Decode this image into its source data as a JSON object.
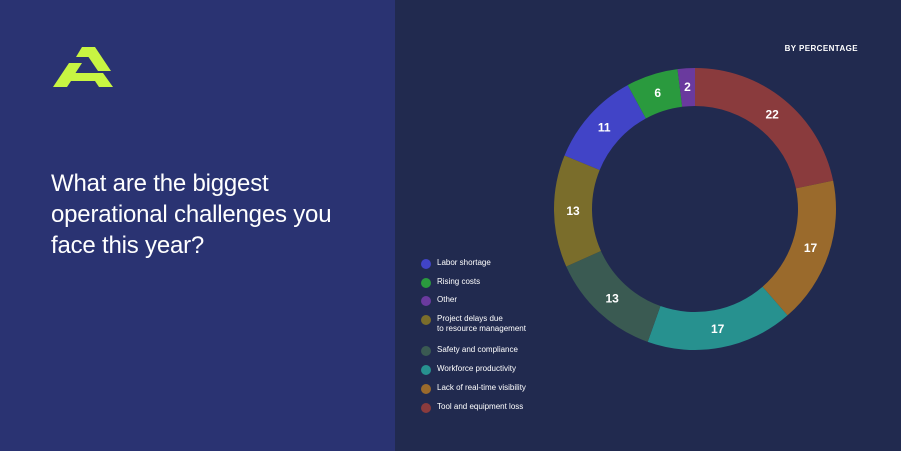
{
  "brand": {
    "logo_icon": "company-logo-icon",
    "accent": "#c8f542"
  },
  "heading": {
    "question": "What are the biggest operational challenges you face this year?"
  },
  "chart_data": {
    "type": "pie",
    "subtitle": "BY PERCENTAGE",
    "donut": true,
    "legend_position": "bottom-left",
    "series": [
      {
        "name": "Tool and equipment loss",
        "value": 22,
        "color": "#8a3b3d"
      },
      {
        "name": "Lack of real-time visibility",
        "value": 17,
        "color": "#9a6a2c"
      },
      {
        "name": "Workforce productivity",
        "value": 17,
        "color": "#27918f"
      },
      {
        "name": "Safety and compliance",
        "value": 13,
        "color": "#3a5a52"
      },
      {
        "name": "Project delays due\nto resource management",
        "value": 13,
        "color": "#7a6d2b"
      },
      {
        "name": "Labor shortage",
        "value": 11,
        "color": "#4144c7"
      },
      {
        "name": "Rising costs",
        "value": 6,
        "color": "#2a9a3e"
      },
      {
        "name": "Other",
        "value": 2,
        "color": "#6a3a9e"
      }
    ],
    "legend_order": [
      "Labor shortage",
      "Rising costs",
      "Other",
      "Project delays due\nto resource management",
      "Safety and compliance",
      "Workforce productivity",
      "Lack of real-time visibility",
      "Tool and equipment loss"
    ]
  }
}
